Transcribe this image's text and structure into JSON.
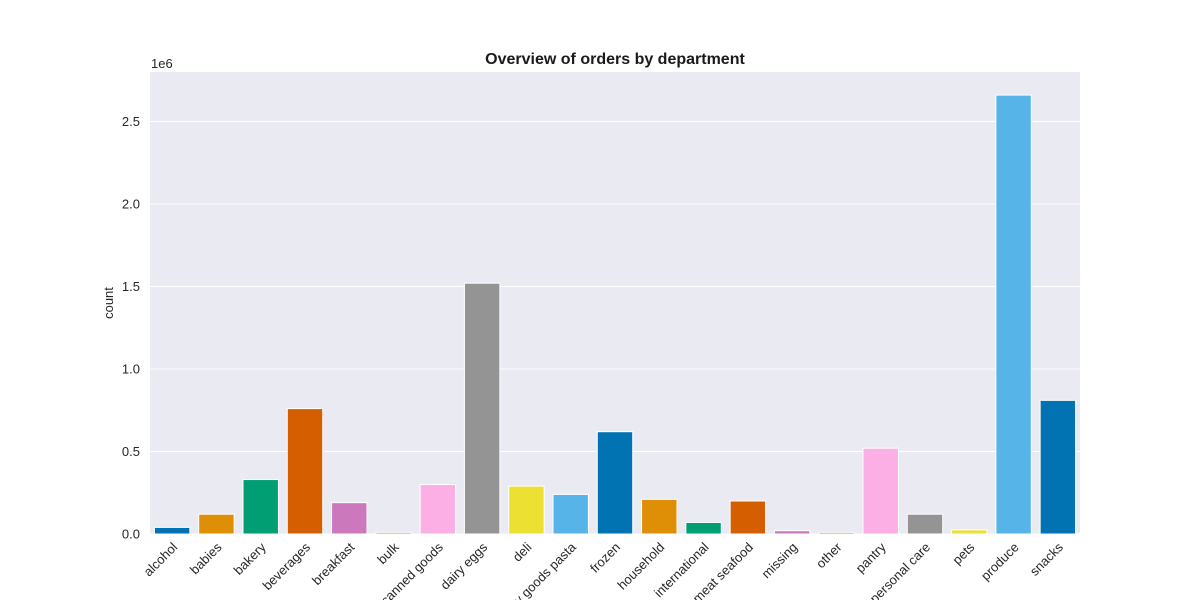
{
  "chart_data": {
    "type": "bar",
    "title": "Overview of orders by department",
    "xlabel": "",
    "ylabel": "count",
    "y_offset_label": "1e6",
    "ylim": [
      0,
      2.8
    ],
    "yticks": [
      0.0,
      0.5,
      1.0,
      1.5,
      2.0,
      2.5
    ],
    "ytick_labels": [
      "0.0",
      "0.5",
      "1.0",
      "1.5",
      "2.0",
      "2.5"
    ],
    "grid": true,
    "categories": [
      "alcohol",
      "babies",
      "bakery",
      "beverages",
      "breakfast",
      "bulk",
      "canned goods",
      "dairy eggs",
      "deli",
      "dry goods pasta",
      "frozen",
      "household",
      "international",
      "meat seafood",
      "missing",
      "other",
      "pantry",
      "personal care",
      "pets",
      "produce",
      "snacks"
    ],
    "values": [
      0.04,
      0.12,
      0.33,
      0.76,
      0.19,
      0.01,
      0.3,
      1.52,
      0.29,
      0.24,
      0.62,
      0.21,
      0.07,
      0.2,
      0.02,
      0.01,
      0.52,
      0.12,
      0.025,
      2.66,
      0.81
    ],
    "colors": [
      "#0173b2",
      "#de8f05",
      "#029e73",
      "#d55e00",
      "#cc78bc",
      "#ca9161",
      "#fbafe4",
      "#949494",
      "#ece133",
      "#56b4e9",
      "#0173b2",
      "#de8f05",
      "#029e73",
      "#d55e00",
      "#cc78bc",
      "#ca9161",
      "#fbafe4",
      "#949494",
      "#ece133",
      "#56b4e9",
      "#0173b2"
    ]
  }
}
